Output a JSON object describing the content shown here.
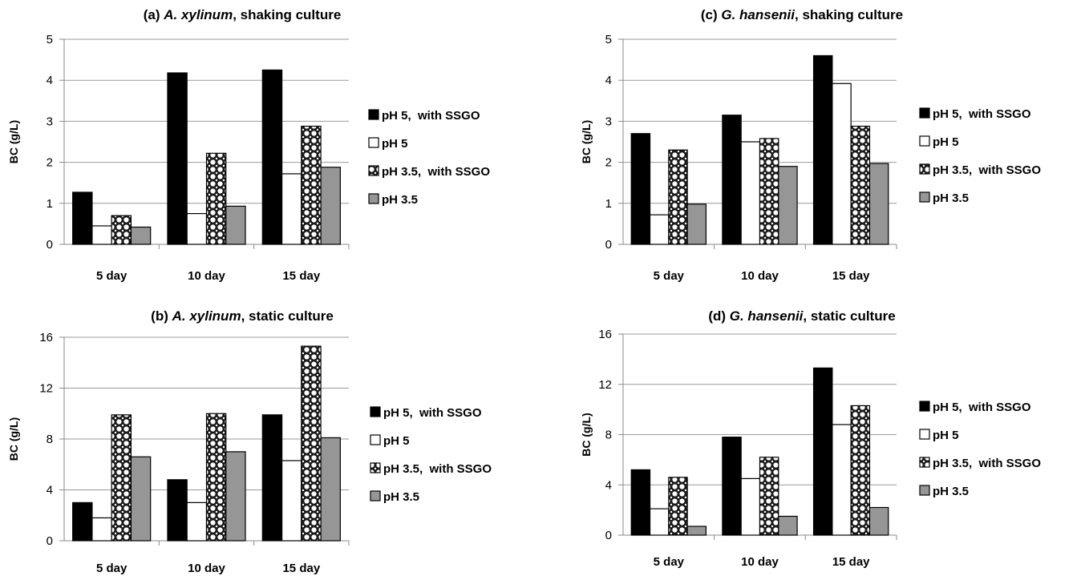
{
  "chart_data": [
    {
      "type": "bar",
      "title_prefix": "(a) ",
      "title_species": "A. xylinum",
      "title_suffix": ", shaking culture",
      "ylabel": "BC (g/L)",
      "ylim": [
        0,
        5
      ],
      "yticks": [
        0,
        1,
        2,
        3,
        4,
        5
      ],
      "categories": [
        "5 day",
        "10 day",
        "15 day"
      ],
      "series": [
        {
          "name": "pH 5,  with SSGO",
          "pattern": "black",
          "values": [
            1.27,
            4.18,
            4.25
          ]
        },
        {
          "name": "pH 5",
          "pattern": "white",
          "values": [
            0.45,
            0.75,
            1.72
          ]
        },
        {
          "name": "pH 3.5,  with SSGO",
          "pattern": "dots",
          "values": [
            0.7,
            2.22,
            2.88
          ]
        },
        {
          "name": "pH 3.5",
          "pattern": "gray",
          "values": [
            0.42,
            0.93,
            1.88
          ]
        }
      ],
      "legend": "right"
    },
    {
      "type": "bar",
      "title_prefix": "(b) ",
      "title_species": "A. xylinum",
      "title_suffix": ", static culture",
      "ylabel": "BC (g/L)",
      "ylim": [
        0,
        16
      ],
      "yticks": [
        0,
        4,
        8,
        12,
        16
      ],
      "categories": [
        "5 day",
        "10 day",
        "15 day"
      ],
      "series": [
        {
          "name": "pH 5,  with SSGO",
          "pattern": "black",
          "values": [
            3.0,
            4.8,
            9.9
          ]
        },
        {
          "name": "pH 5",
          "pattern": "white",
          "values": [
            1.8,
            3.0,
            6.3
          ]
        },
        {
          "name": "pH 3.5,  with SSGO",
          "pattern": "dots",
          "values": [
            9.9,
            10.0,
            15.3
          ]
        },
        {
          "name": "pH 3.5",
          "pattern": "gray",
          "values": [
            6.6,
            7.0,
            8.1
          ]
        }
      ],
      "legend": "right"
    },
    {
      "type": "bar",
      "title_prefix": "(c) ",
      "title_species": "G. hansenii",
      "title_suffix": ", shaking culture",
      "ylabel": "BC (g/L)",
      "ylim": [
        0,
        5
      ],
      "yticks": [
        0,
        1,
        2,
        3,
        4,
        5
      ],
      "categories": [
        "5 day",
        "10 day",
        "15 day"
      ],
      "series": [
        {
          "name": "pH 5,  with SSGO",
          "pattern": "black",
          "values": [
            2.7,
            3.15,
            4.6
          ]
        },
        {
          "name": "pH 5",
          "pattern": "white",
          "values": [
            0.72,
            2.5,
            3.92
          ]
        },
        {
          "name": "pH 3.5,  with SSGO",
          "pattern": "dots",
          "values": [
            2.3,
            2.58,
            2.88
          ]
        },
        {
          "name": "pH 3.5",
          "pattern": "gray",
          "values": [
            0.98,
            1.9,
            1.97
          ]
        }
      ],
      "legend": "right"
    },
    {
      "type": "bar",
      "title_prefix": "(d) ",
      "title_species": "G. hansenii",
      "title_suffix": ", static culture",
      "ylabel": "BC (g/L)",
      "ylim": [
        0,
        16
      ],
      "yticks": [
        0,
        4,
        8,
        12,
        16
      ],
      "categories": [
        "5 day",
        "10 day",
        "15 day"
      ],
      "series": [
        {
          "name": "pH 5,  with SSGO",
          "pattern": "black",
          "values": [
            5.2,
            7.8,
            13.3
          ]
        },
        {
          "name": "pH 5",
          "pattern": "white",
          "values": [
            2.1,
            4.5,
            8.8
          ]
        },
        {
          "name": "pH 3.5,  with SSGO",
          "pattern": "dots",
          "values": [
            4.6,
            6.2,
            10.3
          ]
        },
        {
          "name": "pH 3.5",
          "pattern": "gray",
          "values": [
            0.7,
            1.5,
            2.2
          ]
        }
      ],
      "legend": "right"
    }
  ]
}
